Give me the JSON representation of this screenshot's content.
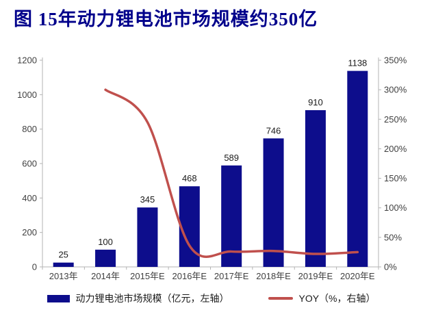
{
  "title": "图  15年动力锂电池市场规模约350亿",
  "legend": {
    "bars_label": "动力锂电池市场规模（亿元，左轴）",
    "line_label": "YOY（%，右轴）"
  },
  "colors": {
    "bar": "#0d0d8c",
    "line": "#c0504d",
    "title": "#00008b",
    "axis_line": "#b3b3b3",
    "tick_text": "#3f3f3f",
    "data_label_text": "#1a1a1a"
  },
  "chart_data": {
    "type": "bar",
    "subtype": "bar+line combo",
    "title": "15年动力锂电池市场规模约350亿",
    "categories": [
      "2013年",
      "2014年",
      "2015年E",
      "2016年E",
      "2017年E",
      "2018年E",
      "2019年E",
      "2020年E"
    ],
    "series": [
      {
        "name": "动力锂电池市场规模（亿元，左轴）",
        "type": "bar",
        "axis": "left",
        "values": [
          25,
          100,
          345,
          468,
          589,
          746,
          910,
          1138
        ]
      },
      {
        "name": "YOY（%，右轴）",
        "type": "line",
        "axis": "right",
        "values": [
          null,
          300,
          245,
          36,
          26,
          27,
          22,
          25
        ]
      }
    ],
    "left_axis": {
      "min": 0,
      "max": 1200,
      "step": 200,
      "suffix": ""
    },
    "right_axis": {
      "min": 0,
      "max": 350,
      "step": 50,
      "suffix": "%"
    },
    "grid": false,
    "data_labels": true,
    "legend_position": "bottom"
  }
}
